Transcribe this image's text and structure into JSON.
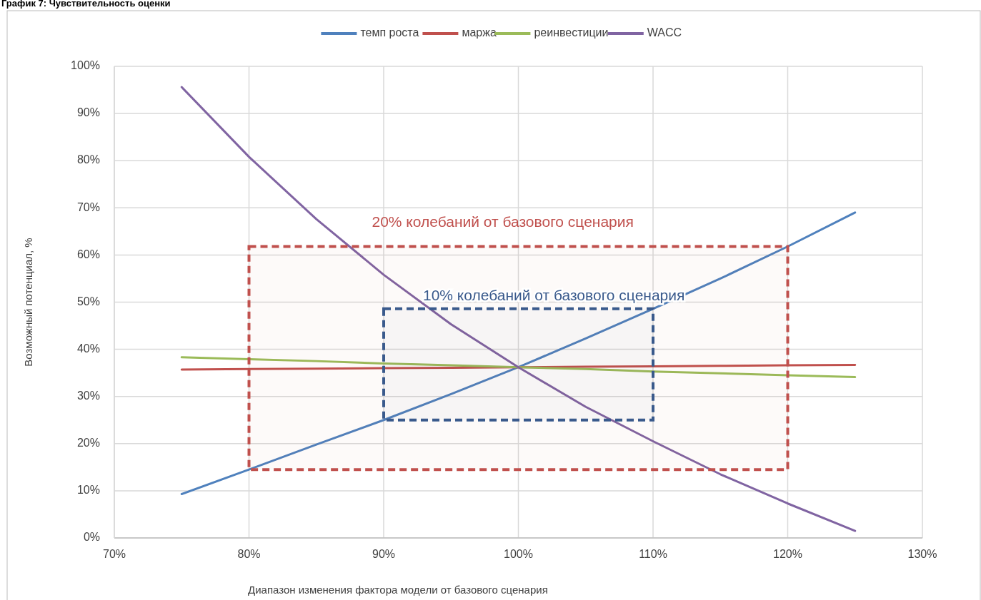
{
  "chart_data": {
    "type": "line",
    "title": "График 7: Чувствительность оценки",
    "xlabel": "Диапазон изменения фактора модели от базового сценария",
    "ylabel": "Возможный потенциал, %",
    "x": [
      75,
      80,
      85,
      90,
      95,
      100,
      105,
      110,
      115,
      120,
      125
    ],
    "series": [
      {
        "name": "темп роста",
        "color": "#4f81bd",
        "values": [
          9.3,
          14.5,
          19.8,
          25,
          30.5,
          36.2,
          42.3,
          48.6,
          55,
          61.8,
          69
        ]
      },
      {
        "name": "маржа",
        "color": "#c0504d",
        "values": [
          35.7,
          35.8,
          35.9,
          36,
          36.1,
          36.2,
          36.3,
          36.4,
          36.5,
          36.6,
          36.7
        ]
      },
      {
        "name": "реинвестиции",
        "color": "#9bbb59",
        "values": [
          38.3,
          37.9,
          37.5,
          37,
          36.6,
          36.2,
          35.8,
          35.3,
          34.9,
          34.5,
          34.1
        ]
      },
      {
        "name": "WACC",
        "color": "#8064a2",
        "values": [
          95.6,
          80.8,
          67.6,
          55.8,
          45.3,
          36.2,
          27.8,
          20.5,
          13.5,
          7.3,
          1.5
        ]
      }
    ],
    "xlim": [
      70,
      130
    ],
    "xticks": [
      {
        "value": 70,
        "label": "70%"
      },
      {
        "value": 80,
        "label": "80%"
      },
      {
        "value": 90,
        "label": "90%"
      },
      {
        "value": 100,
        "label": "100%"
      },
      {
        "value": 110,
        "label": "110%"
      },
      {
        "value": 120,
        "label": "120%"
      },
      {
        "value": 130,
        "label": "130%"
      }
    ],
    "ylim": [
      0,
      100
    ],
    "yticks": [
      {
        "value": 0,
        "label": "0%"
      },
      {
        "value": 10,
        "label": "10%"
      },
      {
        "value": 20,
        "label": "20%"
      },
      {
        "value": 30,
        "label": "30%"
      },
      {
        "value": 40,
        "label": "40%"
      },
      {
        "value": 50,
        "label": "50%"
      },
      {
        "value": 60,
        "label": "60%"
      },
      {
        "value": 70,
        "label": "70%"
      },
      {
        "value": 80,
        "label": "80%"
      },
      {
        "value": 90,
        "label": "90%"
      },
      {
        "value": 100,
        "label": "100%"
      }
    ],
    "bands": [
      {
        "axis": "x",
        "from": 80,
        "to": 120,
        "label": "20% колебаний от базового сценария",
        "color": "#c0504d"
      },
      {
        "axis": "x",
        "from": 90,
        "to": 110,
        "label": "10% колебаний от базового сценария",
        "color": "#3a5a8c"
      }
    ],
    "grid": true,
    "legend": "top",
    "marker": "none",
    "line_style": "solid"
  }
}
